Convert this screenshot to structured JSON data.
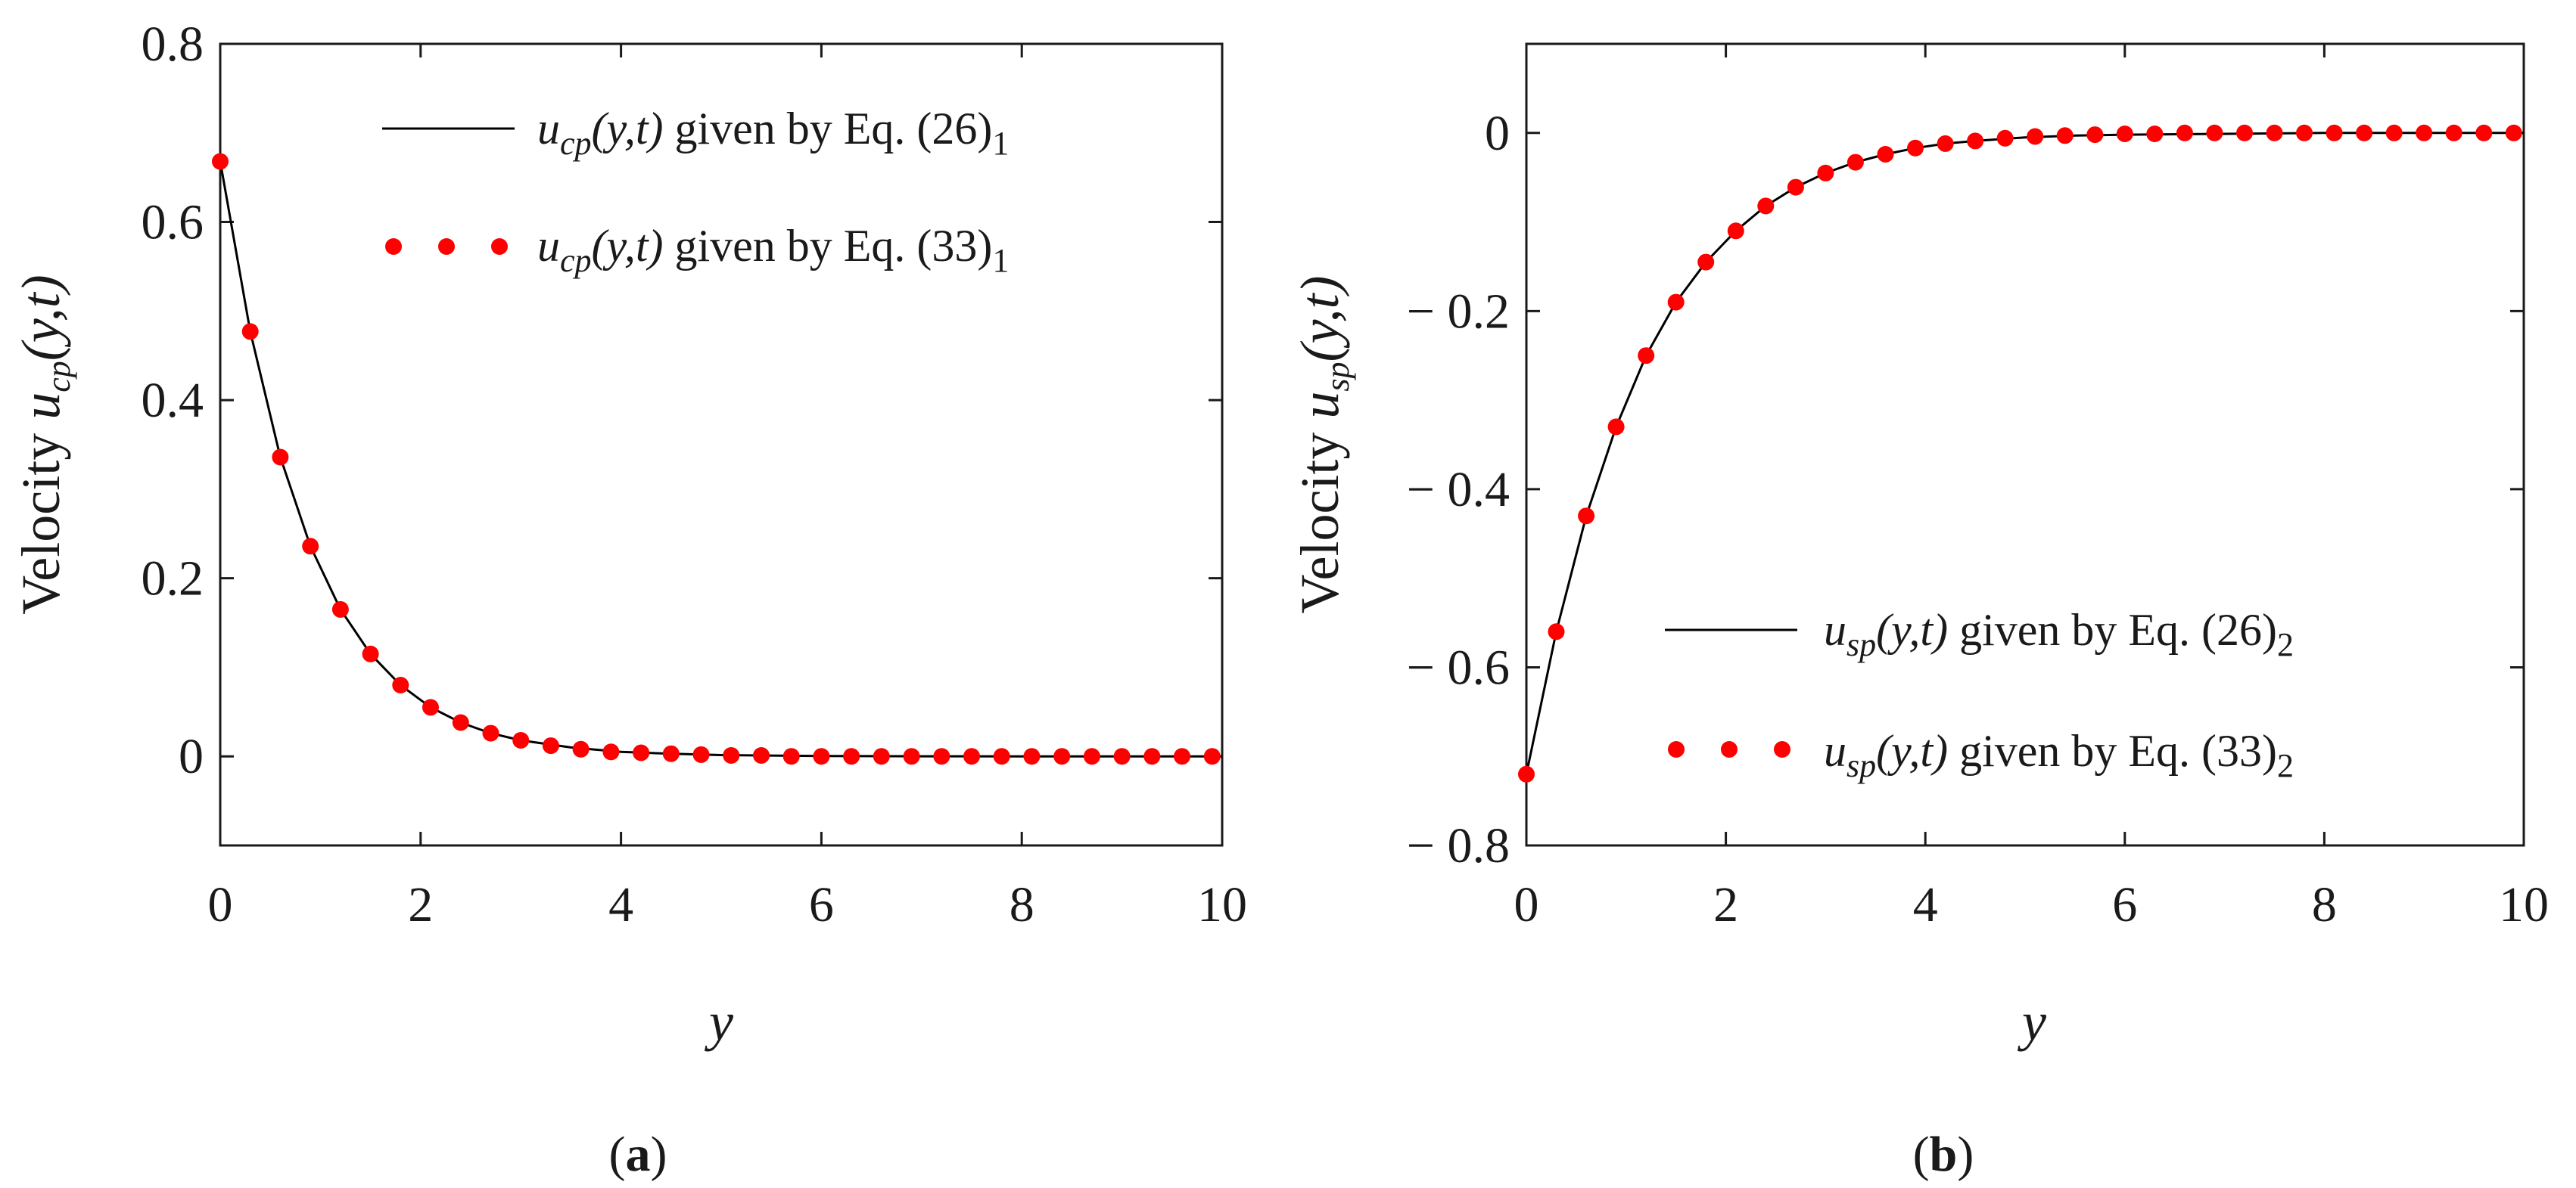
{
  "chart_data": [
    {
      "type": "line",
      "panel": "a",
      "caption": [
        "(",
        "a",
        ")"
      ],
      "xlabel": "y",
      "ylabel": {
        "prefix": "Velocity ",
        "var": "u",
        "sub": "cp",
        "args": "(y,t)"
      },
      "xlim": [
        0,
        10
      ],
      "ylim": [
        -0.1,
        0.8
      ],
      "xticks": [
        0,
        2,
        4,
        6,
        8,
        10
      ],
      "xtick_labels": [
        "0",
        "2",
        "4",
        "6",
        "8",
        "10"
      ],
      "yticks": [
        0,
        0.2,
        0.4,
        0.6,
        0.8
      ],
      "ytick_labels": [
        "0",
        "0.2",
        "0.4",
        "0.6",
        "0.8"
      ],
      "legend_position": "top-right",
      "series": [
        {
          "name": "line",
          "style": "solid-black",
          "label": {
            "var": "u",
            "sub": "cp",
            "args": "(y,t)",
            "text": " given by Eq. (26)",
            "eqsub": "1"
          },
          "x": [
            0.0,
            0.3,
            0.6,
            0.9,
            1.2,
            1.5,
            1.8,
            2.1,
            2.4,
            2.7,
            3.0,
            3.5,
            4.0,
            4.5,
            5.0,
            6.0,
            7.0,
            8.0,
            9.0,
            10.0
          ],
          "y": [
            0.668,
            0.477,
            0.336,
            0.236,
            0.165,
            0.115,
            0.08,
            0.055,
            0.038,
            0.026,
            0.018,
            0.01,
            0.005,
            0.003,
            0.0015,
            0.0004,
            0.0001,
            0.0,
            0.0,
            0.0
          ]
        },
        {
          "name": "dots",
          "style": "red-dots",
          "label": {
            "var": "u",
            "sub": "cp",
            "args": "(y,t)",
            "text": " given by Eq. (33)",
            "eqsub": "1"
          },
          "x": [
            0.0,
            0.3,
            0.6,
            0.9,
            1.2,
            1.5,
            1.8,
            2.1,
            2.4,
            2.7,
            3.0,
            3.3,
            3.6,
            3.9,
            4.2,
            4.5,
            4.8,
            5.1,
            5.4,
            5.7,
            6.0,
            6.3,
            6.6,
            6.9,
            7.2,
            7.5,
            7.8,
            8.1,
            8.4,
            8.7,
            9.0,
            9.3,
            9.6,
            9.9
          ],
          "y": [
            0.668,
            0.477,
            0.336,
            0.236,
            0.165,
            0.115,
            0.08,
            0.055,
            0.038,
            0.026,
            0.018,
            0.012,
            0.008,
            0.005,
            0.004,
            0.003,
            0.002,
            0.001,
            0.001,
            0.0,
            0.0,
            0.0,
            0.0,
            0.0,
            0.0,
            0.0,
            0.0,
            0.0,
            0.0,
            0.0,
            0.0,
            0.0,
            0.0,
            0.0
          ]
        }
      ]
    },
    {
      "type": "line",
      "panel": "b",
      "caption": [
        "(",
        "b",
        ")"
      ],
      "xlabel": "y",
      "ylabel": {
        "prefix": "Velocity ",
        "var": "u",
        "sub": "sp",
        "args": "(y,t)"
      },
      "xlim": [
        0,
        10
      ],
      "ylim": [
        -0.8,
        0.1
      ],
      "xticks": [
        0,
        2,
        4,
        6,
        8,
        10
      ],
      "xtick_labels": [
        "0",
        "2",
        "4",
        "6",
        "8",
        "10"
      ],
      "yticks": [
        -0.8,
        -0.6,
        -0.4,
        -0.2,
        0
      ],
      "ytick_labels": [
        "− 0.8",
        "− 0.6",
        "− 0.4",
        "− 0.2",
        "0"
      ],
      "legend_position": "bottom-right",
      "series": [
        {
          "name": "line",
          "style": "solid-black",
          "label": {
            "var": "u",
            "sub": "sp",
            "args": "(y,t)",
            "text": " given by Eq. (26)",
            "eqsub": "2"
          },
          "x": [
            0.0,
            0.3,
            0.6,
            0.9,
            1.2,
            1.5,
            1.8,
            2.1,
            2.4,
            2.7,
            3.0,
            3.3,
            3.6,
            3.9,
            4.2,
            4.5,
            5.0,
            5.5,
            6.0,
            7.0,
            8.0,
            9.0,
            10.0
          ],
          "y": [
            -0.72,
            -0.56,
            -0.43,
            -0.33,
            -0.25,
            -0.19,
            -0.145,
            -0.11,
            -0.082,
            -0.061,
            -0.045,
            -0.033,
            -0.024,
            -0.017,
            -0.012,
            -0.009,
            -0.005,
            -0.003,
            -0.002,
            -0.001,
            0.0,
            0.0,
            0.0
          ]
        },
        {
          "name": "dots",
          "style": "red-dots",
          "label": {
            "var": "u",
            "sub": "sp",
            "args": "(y,t)",
            "text": " given by Eq. (33)",
            "eqsub": "2"
          },
          "x": [
            0.0,
            0.3,
            0.6,
            0.9,
            1.2,
            1.5,
            1.8,
            2.1,
            2.4,
            2.7,
            3.0,
            3.3,
            3.6,
            3.9,
            4.2,
            4.5,
            4.8,
            5.1,
            5.4,
            5.7,
            6.0,
            6.3,
            6.6,
            6.9,
            7.2,
            7.5,
            7.8,
            8.1,
            8.4,
            8.7,
            9.0,
            9.3,
            9.6,
            9.9
          ],
          "y": [
            -0.72,
            -0.56,
            -0.43,
            -0.33,
            -0.25,
            -0.19,
            -0.145,
            -0.11,
            -0.082,
            -0.061,
            -0.045,
            -0.033,
            -0.024,
            -0.017,
            -0.012,
            -0.009,
            -0.006,
            -0.004,
            -0.003,
            -0.002,
            -0.001,
            -0.001,
            0.0,
            0.0,
            0.0,
            0.0,
            0.0,
            0.0,
            0.0,
            0.0,
            0.0,
            0.0,
            0.0,
            0.0
          ]
        }
      ]
    }
  ],
  "colors": {
    "line": "#000000",
    "dots": "#ff0000",
    "axis": "#1a1a1a",
    "text": "#1a1a1a"
  }
}
